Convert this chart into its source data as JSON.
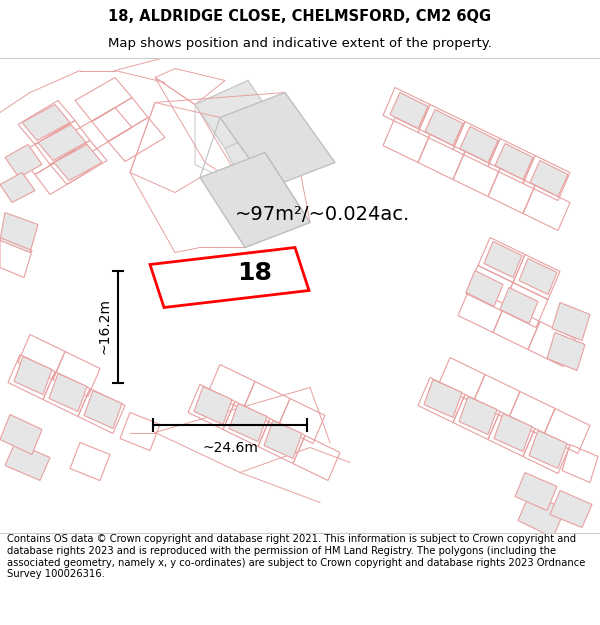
{
  "title_line1": "18, ALDRIDGE CLOSE, CHELMSFORD, CM2 6QG",
  "title_line2": "Map shows position and indicative extent of the property.",
  "footer_text": "Contains OS data © Crown copyright and database right 2021. This information is subject to Crown copyright and database rights 2023 and is reproduced with the permission of HM Land Registry. The polygons (including the associated geometry, namely x, y co-ordinates) are subject to Crown copyright and database rights 2023 Ordnance Survey 100026316.",
  "area_label": "~97m²/~0.024ac.",
  "width_label": "~24.6m",
  "height_label": "~16.2m",
  "plot_number": "18",
  "background_color": "#ffffff",
  "building_fill": "#e6e6e6",
  "building_edge_color": "#e8a0a0",
  "highlight_fill": "#ffffff",
  "highlight_edge": "#ff0000",
  "title_fontsize": 10.5,
  "subtitle_fontsize": 9.5,
  "footer_fontsize": 7.2,
  "label_fontsize": 14,
  "number_fontsize": 18,
  "dim_fontsize": 10
}
